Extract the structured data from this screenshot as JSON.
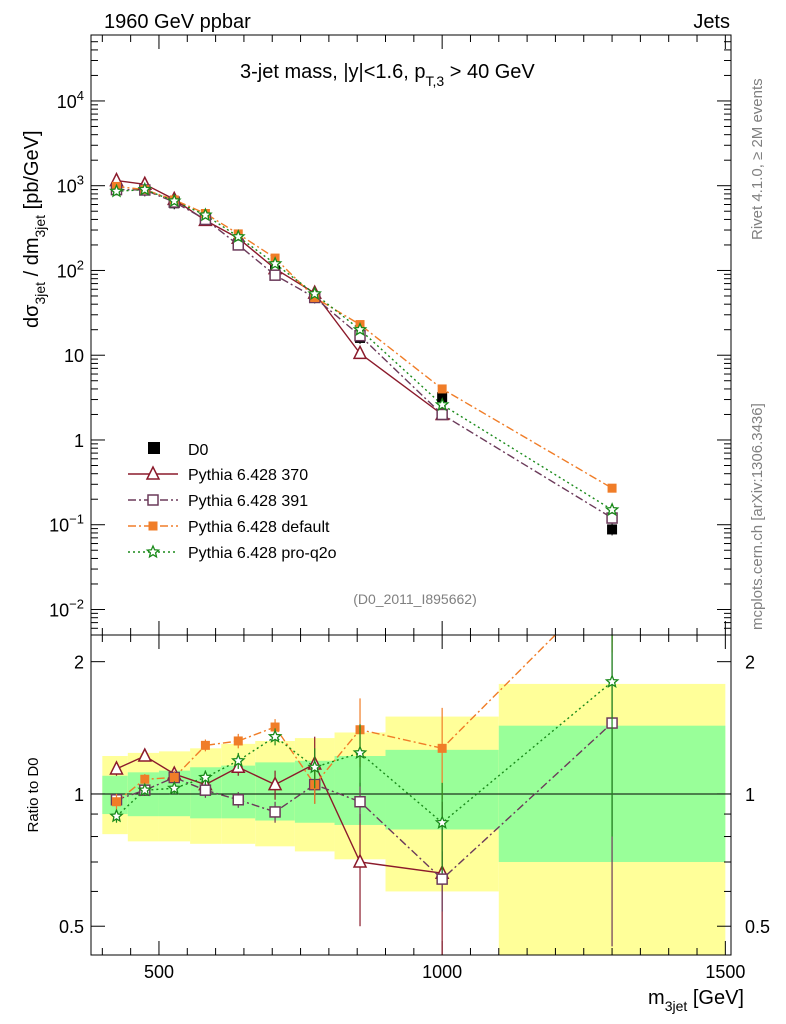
{
  "header": {
    "left": "1960 GeV ppbar",
    "right": "Jets"
  },
  "side": {
    "rivet": "Rivet 4.1.0, ≥ 2M events",
    "mcplots": "mcplots.cern.ch [arXiv:1306.3436]"
  },
  "chart_data": {
    "type": "line",
    "title_main": "3-jet mass, |y|<1.6, p",
    "title_sub": "T,3",
    "title_tail": " > 40 GeV",
    "analysis_id": "(D0_2011_I895662)",
    "ylabel_main": "dσ",
    "ylabel_sub1": "3jet",
    "ylabel_mid": " / dm",
    "ylabel_sub2": "3jet",
    "ylabel_tail": " [pb/GeV]",
    "xlabel_main": "m",
    "xlabel_sub": "3jet",
    "xlabel_tail": " [GeV]",
    "ratio_ylabel": "Ratio to D0",
    "xlim": [
      380,
      1510
    ],
    "ylim": [
      0.005,
      60000
    ],
    "ratio_ylim": [
      0.43,
      2.3
    ],
    "x_ticks": [
      "500",
      "1000",
      "1500"
    ],
    "y_ticks": [
      {
        "v": 10000,
        "base": "10",
        "exp": "4"
      },
      {
        "v": 1000,
        "base": "10",
        "exp": "3"
      },
      {
        "v": 100,
        "base": "10",
        "exp": "2"
      },
      {
        "v": 10,
        "base": "10",
        "exp": ""
      },
      {
        "v": 1,
        "base": "1",
        "exp": ""
      },
      {
        "v": 0.1,
        "base": "10",
        "exp": "−1"
      },
      {
        "v": 0.01,
        "base": "10",
        "exp": "−2"
      }
    ],
    "ratio_ticks": [
      "0.5",
      "1",
      "2"
    ],
    "bins": [
      [
        400,
        445
      ],
      [
        445,
        500
      ],
      [
        500,
        555
      ],
      [
        555,
        610
      ],
      [
        610,
        670
      ],
      [
        670,
        740
      ],
      [
        740,
        810
      ],
      [
        810,
        900
      ],
      [
        900,
        1100
      ],
      [
        1100,
        1500
      ]
    ],
    "x": [
      425,
      475,
      527,
      582,
      640,
      705,
      775,
      855,
      1000,
      1300
    ],
    "band_inner": [
      [
        0.9,
        1.1
      ],
      [
        0.89,
        1.12
      ],
      [
        0.89,
        1.13
      ],
      [
        0.88,
        1.15
      ],
      [
        0.88,
        1.16
      ],
      [
        0.87,
        1.18
      ],
      [
        0.86,
        1.19
      ],
      [
        0.85,
        1.22
      ],
      [
        0.83,
        1.26
      ],
      [
        0.7,
        1.43
      ]
    ],
    "band_outer": [
      [
        0.81,
        1.22
      ],
      [
        0.78,
        1.24
      ],
      [
        0.78,
        1.25
      ],
      [
        0.77,
        1.27
      ],
      [
        0.77,
        1.3
      ],
      [
        0.76,
        1.32
      ],
      [
        0.74,
        1.34
      ],
      [
        0.71,
        1.38
      ],
      [
        0.6,
        1.5
      ],
      [
        0.4,
        1.78
      ]
    ],
    "data_series": {
      "name": "D0",
      "color": "#000000",
      "values": [
        960,
        880,
        620,
        420,
        210,
        100,
        48,
        16,
        3.2,
        0.088
      ]
    },
    "series": [
      {
        "name": "Pythia 6.428 370",
        "color": "#8b1a2b",
        "marker": "triangle",
        "dash": "",
        "hollow": true,
        "values": [
          1150,
          1040,
          690,
          390,
          240,
          105,
          54,
          10.5,
          2.0,
          null
        ],
        "ratio": [
          1.14,
          1.22,
          1.11,
          1.05,
          1.15,
          1.05,
          1.17,
          0.7,
          0.66,
          null
        ],
        "ratio_err": [
          0.04,
          0.03,
          0.03,
          0.04,
          0.05,
          0.08,
          0.18,
          0.2,
          0.3,
          null
        ]
      },
      {
        "name": "Pythia 6.428 391",
        "color": "#6b3a5a",
        "marker": "square",
        "dash": "8,3,2,3",
        "hollow": true,
        "values": [
          900,
          890,
          640,
          400,
          200,
          88,
          48,
          17,
          2.0,
          0.12
        ],
        "ratio": [
          0.97,
          1.02,
          1.09,
          1.02,
          0.97,
          0.91,
          1.05,
          0.96,
          0.64,
          1.45
        ],
        "ratio_err": [
          0.03,
          0.03,
          0.03,
          0.04,
          0.04,
          0.05,
          0.1,
          0.1,
          0.1,
          1.0
        ]
      },
      {
        "name": "Pythia 6.428 default",
        "color": "#f07d28",
        "marker": "fsquare",
        "dash": "8,3,2,3",
        "hollow": false,
        "values": [
          980,
          900,
          680,
          470,
          270,
          140,
          48,
          23,
          4.0,
          0.27
        ],
        "ratio": [
          0.96,
          1.08,
          1.09,
          1.29,
          1.32,
          1.42,
          1.05,
          1.4,
          1.27,
          3.1
        ],
        "ratio_err": [
          0.04,
          0.03,
          0.04,
          0.04,
          0.05,
          0.06,
          0.1,
          0.25,
          0.3,
          1.0
        ]
      },
      {
        "name": "Pythia 6.428 pro-q2o",
        "color": "#1a8a1a",
        "marker": "star",
        "dash": "2,3",
        "hollow": false,
        "values": [
          860,
          900,
          660,
          450,
          250,
          120,
          53,
          20,
          2.6,
          0.15
        ],
        "ratio": [
          0.89,
          1.02,
          1.03,
          1.09,
          1.19,
          1.35,
          1.15,
          1.24,
          0.86,
          1.8
        ],
        "ratio_err": [
          0.03,
          0.03,
          0.03,
          0.04,
          0.05,
          0.06,
          0.12,
          0.2,
          0.2,
          1.0
        ]
      }
    ]
  }
}
